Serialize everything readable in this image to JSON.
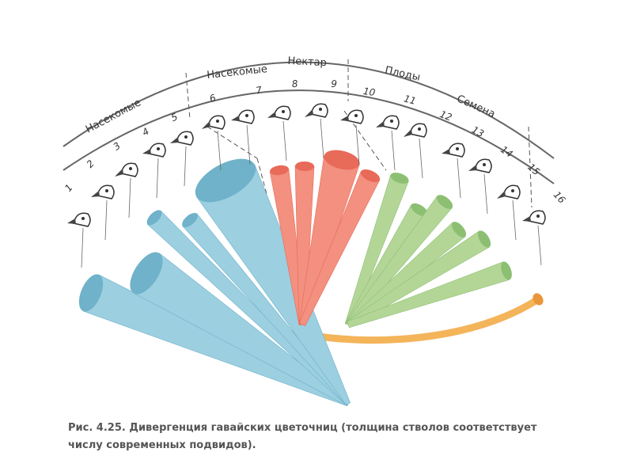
{
  "groups": [
    {
      "label": "Насекомые"
    },
    {
      "label": "Насекомые"
    },
    {
      "label": "Нектар"
    },
    {
      "label": "Плоды"
    },
    {
      "label": "Семена"
    }
  ],
  "species": [
    "1",
    "2",
    "3",
    "4",
    "5",
    "6",
    "7",
    "8",
    "9",
    "10",
    "11",
    "12",
    "13",
    "14",
    "15",
    "16"
  ],
  "caption": {
    "figure": "Рис. 4.25.",
    "text": "Дивергенция гавайских цветочниц (толщина стволов соответствует числу современных подвидов)."
  }
}
